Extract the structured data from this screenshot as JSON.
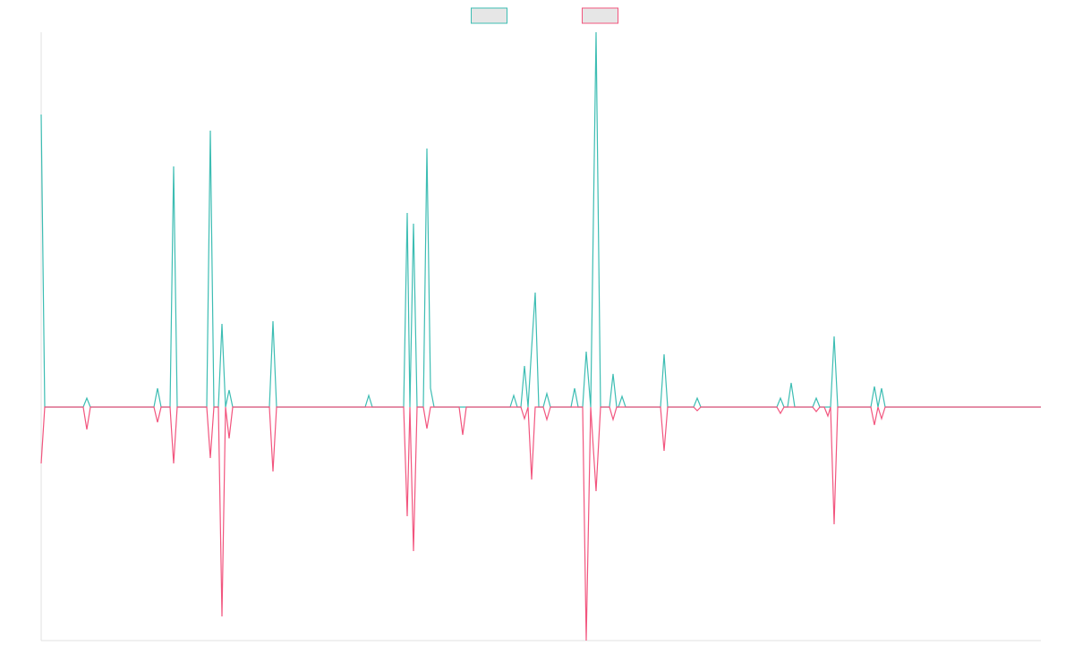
{
  "chart_data": {
    "type": "line",
    "x": [
      0,
      4,
      47,
      51,
      55,
      126,
      130,
      134,
      144,
      148,
      152,
      185,
      189,
      193,
      198,
      202,
      206,
      210,
      214,
      255,
      259,
      263,
      362,
      366,
      370,
      405,
      409,
      412,
      416,
      420,
      427,
      431,
      435,
      439,
      467,
      471,
      475,
      524,
      528,
      532,
      536,
      540,
      544,
      548,
      552,
      556,
      561,
      565,
      569,
      592,
      596,
      600,
      605,
      609,
      614,
      620,
      625,
      635,
      639,
      643,
      645,
      649,
      653,
      692,
      696,
      700,
      729,
      733,
      737,
      822,
      826,
      830,
      834,
      838,
      842,
      862,
      866,
      870,
      875,
      879,
      882,
      886,
      890,
      927,
      931,
      935,
      939,
      943,
      1117
    ],
    "series": [
      {
        "color": "#3dbdb3",
        "values": [
          327,
          0,
          0,
          10,
          0,
          0,
          21,
          0,
          0,
          269,
          0,
          0,
          309,
          0,
          0,
          93,
          0,
          19,
          0,
          0,
          96,
          0,
          0,
          13,
          0,
          0,
          217,
          0,
          205,
          0,
          0,
          289,
          21,
          0,
          0,
          0,
          0,
          0,
          13,
          0,
          0,
          46,
          0,
          66,
          128,
          0,
          0,
          15,
          0,
          0,
          21,
          0,
          0,
          62,
          0,
          419,
          0,
          0,
          37,
          0,
          0,
          12,
          0,
          0,
          59,
          0,
          0,
          10,
          0,
          0,
          10,
          0,
          0,
          27,
          0,
          0,
          10,
          0,
          0,
          0,
          0,
          79,
          0,
          0,
          23,
          0,
          21,
          0,
          0
        ]
      },
      {
        "color": "#f2557e",
        "values": [
          -63,
          0,
          0,
          -25,
          0,
          0,
          -17,
          0,
          0,
          -63,
          0,
          0,
          -57,
          0,
          0,
          -234,
          0,
          -35,
          0,
          0,
          -72,
          0,
          0,
          0,
          0,
          0,
          -122,
          0,
          -161,
          0,
          0,
          -24,
          0,
          0,
          0,
          -31,
          0,
          0,
          0,
          0,
          0,
          -13,
          0,
          -81,
          0,
          0,
          0,
          -14,
          0,
          0,
          0,
          0,
          0,
          -261,
          0,
          -94,
          0,
          0,
          -14,
          0,
          0,
          0,
          0,
          0,
          -49,
          0,
          0,
          -4,
          0,
          0,
          -7,
          0,
          0,
          0,
          0,
          0,
          -5,
          0,
          0,
          -10,
          0,
          -131,
          0,
          0,
          -20,
          0,
          -13,
          0,
          0
        ]
      }
    ],
    "xlim": [
      0,
      1117
    ],
    "ylim": [
      -261,
      419
    ],
    "legend": "top"
  }
}
